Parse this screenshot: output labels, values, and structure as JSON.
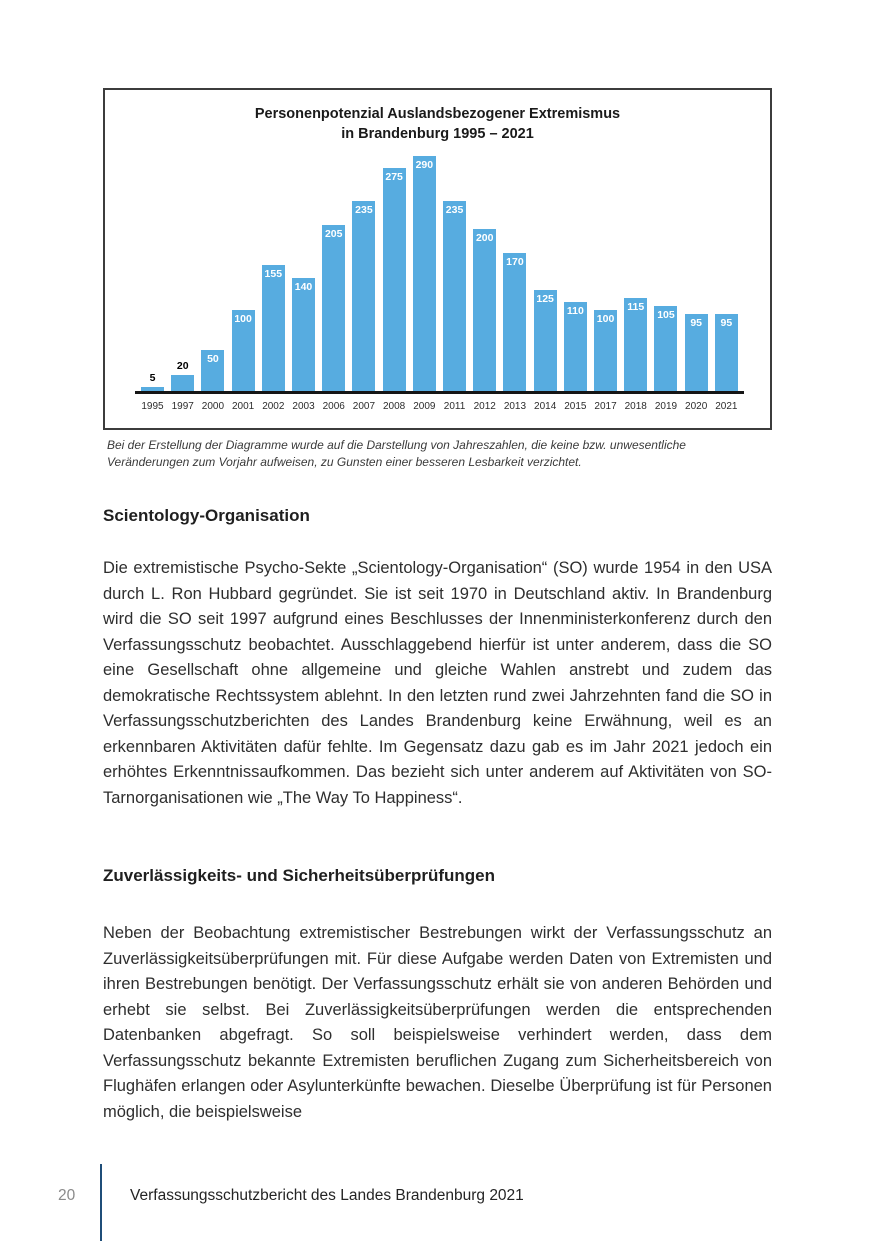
{
  "chart_data": {
    "type": "bar",
    "title": "Personenpotenzial Auslandsbezogener Extremismus in Brandenburg 1995 – 2021",
    "title_lines": [
      "Personenpotenzial Auslandsbezogener Extremismus",
      "in Brandenburg 1995 – 2021"
    ],
    "categories": [
      "1995",
      "1997",
      "2000",
      "2001",
      "2002",
      "2003",
      "2006",
      "2007",
      "2008",
      "2009",
      "2011",
      "2012",
      "2013",
      "2014",
      "2015",
      "2017",
      "2018",
      "2019",
      "2020",
      "2021"
    ],
    "values": [
      5,
      20,
      50,
      100,
      155,
      140,
      205,
      235,
      275,
      290,
      235,
      200,
      170,
      125,
      110,
      100,
      115,
      105,
      95,
      95
    ],
    "xlabel": "",
    "ylabel": "",
    "y_axis_visible": false,
    "grid": false,
    "legend": false,
    "data_labels": true,
    "bar_color": "#57ACE0"
  },
  "chart_caption": "Bei der Erstellung der Diagramme wurde auf die Darstellung von Jahreszahlen, die keine bzw. unwesentliche Veränderungen zum Vorjahr aufweisen, zu Gunsten einer besseren Lesbarkeit verzichtet.",
  "sections": [
    {
      "heading": "Scientology-Organisation",
      "paragraph": "Die extremistische Psycho-Sekte „Scientology-Organisation“ (SO) wurde 1954 in den USA durch L. Ron Hubbard gegründet. Sie ist seit 1970 in Deutschland aktiv. In Brandenburg wird die SO seit 1997 aufgrund eines Beschlusses der Innen­ministerkonferenz durch den Verfassungsschutz beobachtet. Ausschlaggebend hierfür ist unter anderem, dass die SO eine Gesellschaft ohne allgemeine und gleiche Wahlen anstrebt und zudem das demokratische Rechtssystem ablehnt. In den letzten rund zwei Jahrzehnten fand die SO in Verfassungsschutzberichten des Landes Brandenburg keine Erwähnung, weil es an erkennbaren Aktivitäten dafür fehlte. Im Gegensatz dazu gab es im Jahr 2021 jedoch ein erhöhtes Er­kenntnissaufkommen. Das bezieht sich unter anderem auf Aktivitäten von SO-Tarnorganisationen wie „The Way To Happiness“."
    },
    {
      "heading": "Zuverlässigkeits- und Sicherheitsüberprüfungen",
      "paragraph": "Neben der Beobachtung extremistischer Bestrebungen wirkt der Verfassungs­schutz an Zuverlässigkeitsüberprüfungen mit. Für diese Aufgabe werden Daten von Extremisten und ihren Bestrebungen benötigt. Der Verfassungsschutz erhält sie von anderen Behörden und erhebt sie selbst. Bei Zuverlässigkeitsüberprüfun­gen werden die entsprechenden Datenbanken abgefragt. So soll beispielsweise verhindert werden, dass dem Verfassungsschutz bekannte Extremisten berufli­chen Zugang zum Sicherheitsbereich von Flughäfen erlangen oder Asylunterkünf­te bewachen. Dieselbe Überprüfung ist für Personen möglich, die beispielsweise"
    }
  ],
  "footer": {
    "page_number": "20",
    "text": "Verfassungsschutzbericht des Landes Brandenburg 2021"
  },
  "colors": {
    "bar_blue": "#57ACE0",
    "footer_line_blue": "#1F4E79",
    "axis_black": "#151515"
  }
}
